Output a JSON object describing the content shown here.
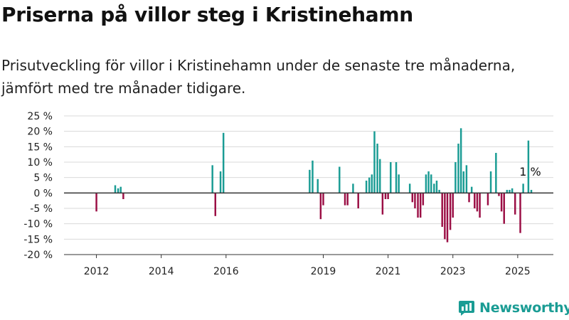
{
  "title": "Priserna på villor steg i Kristinehamn",
  "subtitle": "Prisutveckling för villor i Kristinehamn under de senaste tre månaderna, jämfört med tre månader tidigare.",
  "brand": {
    "name": "Newsworthy",
    "icon": "newsworthy-logo-icon",
    "color": "#1a9c94"
  },
  "colors": {
    "positive": "#1a9c94",
    "negative": "#9b0f45",
    "grid": "#d9d9d9",
    "axis": "#333333"
  },
  "chart_data": {
    "type": "bar",
    "title": "Priserna på villor steg i Kristinehamn",
    "xlabel": "",
    "ylabel": "",
    "ylim": [
      -20,
      25
    ],
    "xlim": [
      2011.0,
      2026.1
    ],
    "grid": true,
    "legend": "none",
    "y_ticks": [
      -20,
      -15,
      -10,
      -5,
      0,
      5,
      10,
      15,
      20,
      25
    ],
    "y_tick_labels": [
      "-20 %",
      "-15 %",
      "-10 %",
      "-5 %",
      "0 %",
      "5 %",
      "10 %",
      "15 %",
      "20 %",
      "25 %"
    ],
    "x_ticks": [
      2012,
      2014,
      2016,
      2019,
      2021,
      2023,
      2025
    ],
    "x_tick_labels": [
      "2012",
      "2014",
      "2016",
      "2019",
      "2021",
      "2023",
      "2025"
    ],
    "annotation": {
      "text": "1 %",
      "x": 2025.38,
      "y": 1
    },
    "series": [
      {
        "values": [
          {
            "x": 2012.0,
            "y": -6
          },
          {
            "x": 2012.58,
            "y": 2.5
          },
          {
            "x": 2012.67,
            "y": 1.5
          },
          {
            "x": 2012.75,
            "y": 2
          },
          {
            "x": 2012.83,
            "y": -2
          },
          {
            "x": 2015.58,
            "y": 9
          },
          {
            "x": 2015.67,
            "y": -7.5
          },
          {
            "x": 2015.83,
            "y": 7
          },
          {
            "x": 2015.92,
            "y": 19.5
          },
          {
            "x": 2018.58,
            "y": 7.5
          },
          {
            "x": 2018.67,
            "y": 10.5
          },
          {
            "x": 2018.83,
            "y": 4.5
          },
          {
            "x": 2018.92,
            "y": -8.5
          },
          {
            "x": 2019.0,
            "y": -4
          },
          {
            "x": 2019.5,
            "y": 8.5
          },
          {
            "x": 2019.67,
            "y": -4
          },
          {
            "x": 2019.75,
            "y": -4
          },
          {
            "x": 2019.92,
            "y": 3
          },
          {
            "x": 2020.08,
            "y": -5
          },
          {
            "x": 2020.33,
            "y": 4
          },
          {
            "x": 2020.42,
            "y": 5
          },
          {
            "x": 2020.5,
            "y": 6
          },
          {
            "x": 2020.58,
            "y": 20
          },
          {
            "x": 2020.67,
            "y": 16
          },
          {
            "x": 2020.75,
            "y": 11
          },
          {
            "x": 2020.83,
            "y": -7
          },
          {
            "x": 2020.92,
            "y": -2
          },
          {
            "x": 2021.0,
            "y": -2
          },
          {
            "x": 2021.08,
            "y": 10
          },
          {
            "x": 2021.25,
            "y": 10
          },
          {
            "x": 2021.33,
            "y": 6
          },
          {
            "x": 2021.67,
            "y": 3
          },
          {
            "x": 2021.75,
            "y": -3
          },
          {
            "x": 2021.83,
            "y": -5
          },
          {
            "x": 2021.92,
            "y": -8
          },
          {
            "x": 2022.0,
            "y": -8
          },
          {
            "x": 2022.08,
            "y": -4
          },
          {
            "x": 2022.17,
            "y": 6
          },
          {
            "x": 2022.25,
            "y": 7
          },
          {
            "x": 2022.33,
            "y": 6
          },
          {
            "x": 2022.42,
            "y": 3
          },
          {
            "x": 2022.5,
            "y": 4
          },
          {
            "x": 2022.58,
            "y": 1
          },
          {
            "x": 2022.67,
            "y": -11
          },
          {
            "x": 2022.75,
            "y": -15
          },
          {
            "x": 2022.83,
            "y": -16
          },
          {
            "x": 2022.92,
            "y": -12
          },
          {
            "x": 2023.0,
            "y": -8
          },
          {
            "x": 2023.08,
            "y": 10
          },
          {
            "x": 2023.17,
            "y": 16
          },
          {
            "x": 2023.25,
            "y": 21
          },
          {
            "x": 2023.33,
            "y": 7
          },
          {
            "x": 2023.42,
            "y": 9
          },
          {
            "x": 2023.5,
            "y": -3
          },
          {
            "x": 2023.58,
            "y": 2
          },
          {
            "x": 2023.67,
            "y": -5
          },
          {
            "x": 2023.75,
            "y": -6
          },
          {
            "x": 2023.83,
            "y": -8
          },
          {
            "x": 2024.08,
            "y": -4
          },
          {
            "x": 2024.17,
            "y": 7
          },
          {
            "x": 2024.33,
            "y": 13
          },
          {
            "x": 2024.42,
            "y": -1
          },
          {
            "x": 2024.5,
            "y": -6
          },
          {
            "x": 2024.58,
            "y": -10
          },
          {
            "x": 2024.67,
            "y": 1
          },
          {
            "x": 2024.75,
            "y": 1
          },
          {
            "x": 2024.83,
            "y": 1.5
          },
          {
            "x": 2024.92,
            "y": -7
          },
          {
            "x": 2025.08,
            "y": -13
          },
          {
            "x": 2025.17,
            "y": 3
          },
          {
            "x": 2025.33,
            "y": 17
          },
          {
            "x": 2025.42,
            "y": 1
          }
        ]
      }
    ]
  }
}
